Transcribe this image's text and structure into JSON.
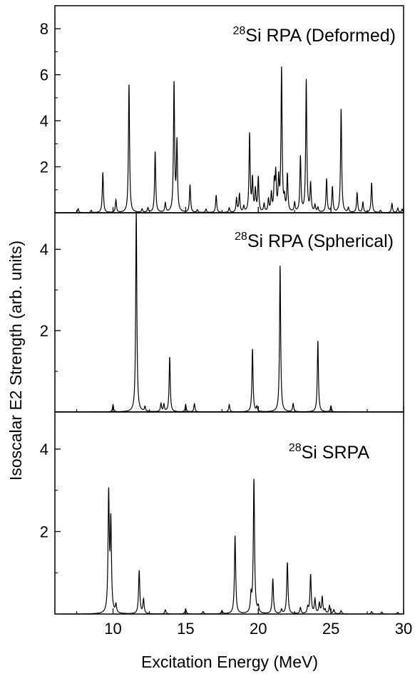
{
  "figure": {
    "xlabel": "Excitation Energy (MeV)",
    "ylabel": "Isoscalar E2 Strength (arb. units)"
  },
  "chart_data": [
    {
      "type": "line",
      "panel": "top",
      "label_sup": "28",
      "label_text": "Si RPA (Deformed)",
      "xlim": [
        6,
        30
      ],
      "ylim": [
        0,
        9
      ],
      "yticks": [
        2,
        4,
        6,
        8
      ],
      "xticks": [
        10,
        15,
        20,
        25,
        30
      ],
      "xticklabels_shown": false,
      "width": 0.045,
      "peaks": [
        [
          7.6,
          0.18
        ],
        [
          8.5,
          0.1
        ],
        [
          9.3,
          1.75
        ],
        [
          10.2,
          0.55
        ],
        [
          11.1,
          5.6
        ],
        [
          12.0,
          0.15
        ],
        [
          12.4,
          0.2
        ],
        [
          12.9,
          2.65
        ],
        [
          13.6,
          0.4
        ],
        [
          14.2,
          5.6
        ],
        [
          14.4,
          3.0
        ],
        [
          15.3,
          1.2
        ],
        [
          15.8,
          0.12
        ],
        [
          16.4,
          0.15
        ],
        [
          17.1,
          0.75
        ],
        [
          18.0,
          0.2
        ],
        [
          18.5,
          0.6
        ],
        [
          18.7,
          0.8
        ],
        [
          19.0,
          0.25
        ],
        [
          19.4,
          3.4
        ],
        [
          19.6,
          1.4
        ],
        [
          19.8,
          0.95
        ],
        [
          20.0,
          1.5
        ],
        [
          20.4,
          0.35
        ],
        [
          20.7,
          0.55
        ],
        [
          20.9,
          0.8
        ],
        [
          21.1,
          1.2
        ],
        [
          21.2,
          1.6
        ],
        [
          21.4,
          1.35
        ],
        [
          21.6,
          6.2
        ],
        [
          21.8,
          0.5
        ],
        [
          22.0,
          1.6
        ],
        [
          22.5,
          0.4
        ],
        [
          22.9,
          2.4
        ],
        [
          23.3,
          5.75
        ],
        [
          23.6,
          1.2
        ],
        [
          23.9,
          0.3
        ],
        [
          24.1,
          0.2
        ],
        [
          24.7,
          1.45
        ],
        [
          25.1,
          1.1
        ],
        [
          25.7,
          4.5
        ],
        [
          26.2,
          0.2
        ],
        [
          26.8,
          0.85
        ],
        [
          27.2,
          0.45
        ],
        [
          27.8,
          1.3
        ],
        [
          28.4,
          0.1
        ],
        [
          29.2,
          0.4
        ],
        [
          29.6,
          0.2
        ],
        [
          29.9,
          0.15
        ]
      ]
    },
    {
      "type": "line",
      "panel": "middle",
      "label_sup": "28",
      "label_text": "Si RPA (Spherical)",
      "xlim": [
        6,
        30
      ],
      "ylim": [
        0,
        4.9
      ],
      "yticks": [
        2,
        4
      ],
      "xticks": [
        10,
        15,
        20,
        25,
        30
      ],
      "xticklabels_shown": false,
      "width": 0.045,
      "peaks": [
        [
          10.0,
          0.18
        ],
        [
          11.6,
          5.0
        ],
        [
          12.2,
          0.12
        ],
        [
          13.3,
          0.2
        ],
        [
          13.5,
          0.18
        ],
        [
          13.9,
          1.35
        ],
        [
          15.0,
          0.18
        ],
        [
          15.6,
          0.2
        ],
        [
          18.0,
          0.18
        ],
        [
          19.6,
          1.55
        ],
        [
          19.9,
          0.12
        ],
        [
          21.5,
          3.6
        ],
        [
          22.4,
          0.2
        ],
        [
          24.1,
          1.75
        ],
        [
          25.0,
          0.15
        ]
      ]
    },
    {
      "type": "line",
      "panel": "bottom",
      "label_sup": "28",
      "label_text": "Si SRPA",
      "xlim": [
        6,
        30
      ],
      "ylim": [
        0,
        4.9
      ],
      "yticks": [
        2,
        4
      ],
      "xticks": [
        10,
        15,
        20,
        25,
        30
      ],
      "xticklabels_shown": true,
      "width": 0.05,
      "peaks": [
        [
          9.7,
          2.85
        ],
        [
          9.85,
          2.15
        ],
        [
          10.2,
          0.2
        ],
        [
          11.8,
          1.05
        ],
        [
          12.1,
          0.35
        ],
        [
          13.6,
          0.1
        ],
        [
          15.0,
          0.12
        ],
        [
          16.2,
          0.06
        ],
        [
          17.5,
          0.08
        ],
        [
          18.4,
          1.9
        ],
        [
          19.5,
          0.4
        ],
        [
          19.7,
          3.25
        ],
        [
          20.0,
          0.15
        ],
        [
          21.0,
          0.85
        ],
        [
          21.6,
          0.1
        ],
        [
          22.0,
          1.25
        ],
        [
          22.9,
          0.15
        ],
        [
          23.4,
          0.15
        ],
        [
          23.6,
          0.95
        ],
        [
          23.9,
          0.35
        ],
        [
          24.2,
          0.25
        ],
        [
          24.4,
          0.4
        ],
        [
          24.6,
          0.1
        ],
        [
          24.9,
          0.2
        ],
        [
          25.2,
          0.1
        ],
        [
          25.7,
          0.08
        ],
        [
          27.8,
          0.06
        ],
        [
          28.5,
          0.05
        ],
        [
          29.6,
          0.04
        ]
      ]
    }
  ]
}
